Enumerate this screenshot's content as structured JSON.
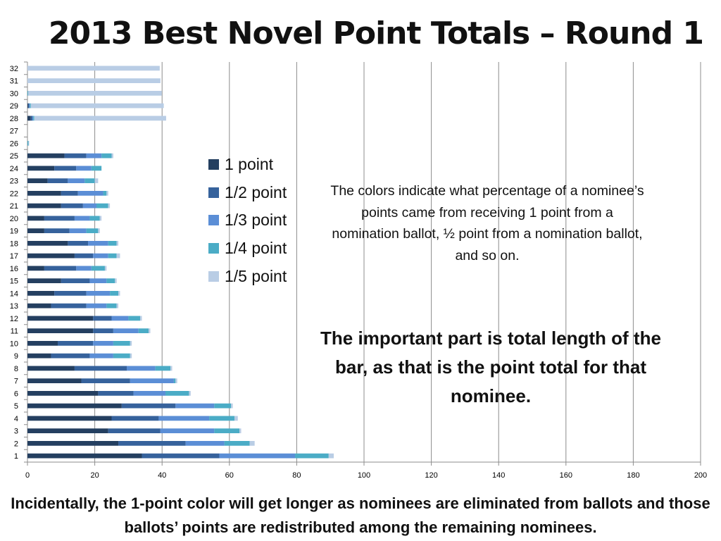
{
  "title": "2013 Best Novel Point Totals – Round 1",
  "legend": [
    {
      "label": "1 point",
      "color": "#243f60"
    },
    {
      "label": "1/2 point",
      "color": "#36629c"
    },
    {
      "label": "1/3 point",
      "color": "#5b8ed6"
    },
    {
      "label": "1/4 point",
      "color": "#4bacc6"
    },
    {
      "label": "1/5 point",
      "color": "#b9cde5"
    }
  ],
  "note": "The colors indicate what percentage of a nominee’s points came from receiving 1 point from a nomination ballot, ½ point from a nomination ballot, and so on.",
  "emphasis": "The important part is total length of the bar, as that is the point total for that nominee.",
  "footer": "Incidentally, the 1-point color will get longer as nominees are eliminated from ballots and those ballots’ points are redistributed among the remaining nominees.",
  "chart_data": {
    "type": "bar",
    "orientation": "horizontal",
    "stacked": true,
    "title": "2013 Best Novel Point Totals – Round 1",
    "xlim": [
      0,
      200
    ],
    "x_ticks": [
      0,
      20,
      40,
      60,
      80,
      100,
      120,
      140,
      160,
      180,
      200
    ],
    "gridlines": "vertical",
    "legend_position": "center",
    "categories": [
      "1",
      "2",
      "3",
      "4",
      "5",
      "6",
      "7",
      "8",
      "9",
      "10",
      "11",
      "12",
      "13",
      "14",
      "15",
      "16",
      "17",
      "18",
      "19",
      "20",
      "21",
      "22",
      "23",
      "24",
      "25",
      "26",
      "27",
      "28",
      "29",
      "30",
      "31",
      "32"
    ],
    "series": [
      {
        "name": "1 point",
        "color": "#243f60",
        "values": [
          34,
          27,
          24,
          25,
          28,
          21,
          16,
          14,
          7,
          9,
          19.5,
          19.5,
          7,
          8,
          10,
          5,
          14,
          12,
          5,
          5,
          10,
          10,
          6,
          8,
          11,
          0,
          0,
          1,
          0.2,
          0,
          0,
          0
        ]
      },
      {
        "name": "1/2 point",
        "color": "#36629c",
        "values": [
          23,
          20,
          15.5,
          14,
          16,
          10.5,
          14.5,
          15.5,
          11.5,
          10.5,
          6,
          5.5,
          10.5,
          9.5,
          8.5,
          9.5,
          5.5,
          6,
          7.5,
          9,
          6.5,
          5,
          6,
          6.5,
          6.5,
          0,
          0,
          0.5,
          0.3,
          0,
          0,
          0
        ]
      },
      {
        "name": "1/3 point",
        "color": "#5b8ed6",
        "values": [
          22.5,
          11.5,
          16,
          15,
          11.5,
          9.5,
          13,
          8.5,
          7,
          6,
          7.5,
          5,
          6,
          7,
          5,
          4.5,
          4.5,
          6,
          5,
          4.5,
          4,
          7.5,
          5,
          4.5,
          4.5,
          0,
          0,
          0.2,
          0.2,
          0,
          0,
          0
        ]
      },
      {
        "name": "1/4 point",
        "color": "#4bacc6",
        "values": [
          10,
          7.5,
          7.5,
          7.5,
          5,
          7,
          0.5,
          4.5,
          5,
          5,
          3,
          3.5,
          3,
          2.5,
          2.5,
          4,
          2.5,
          2.5,
          3.5,
          3,
          3.5,
          1,
          3,
          3,
          3,
          0.3,
          0,
          0.3,
          0.3,
          0.2,
          0,
          0
        ]
      },
      {
        "name": "1/5 point",
        "color": "#b9cde5",
        "values": [
          1.5,
          1.5,
          0.5,
          1,
          0.5,
          0.5,
          0.5,
          0.5,
          0.5,
          0.5,
          0.5,
          0.5,
          0.5,
          0.5,
          0.5,
          0.5,
          1,
          0.5,
          0.5,
          0.5,
          0.5,
          0.5,
          1,
          0,
          0.5,
          0.2,
          0,
          39.2,
          39.5,
          39.7,
          39.5,
          39.3
        ]
      }
    ]
  }
}
